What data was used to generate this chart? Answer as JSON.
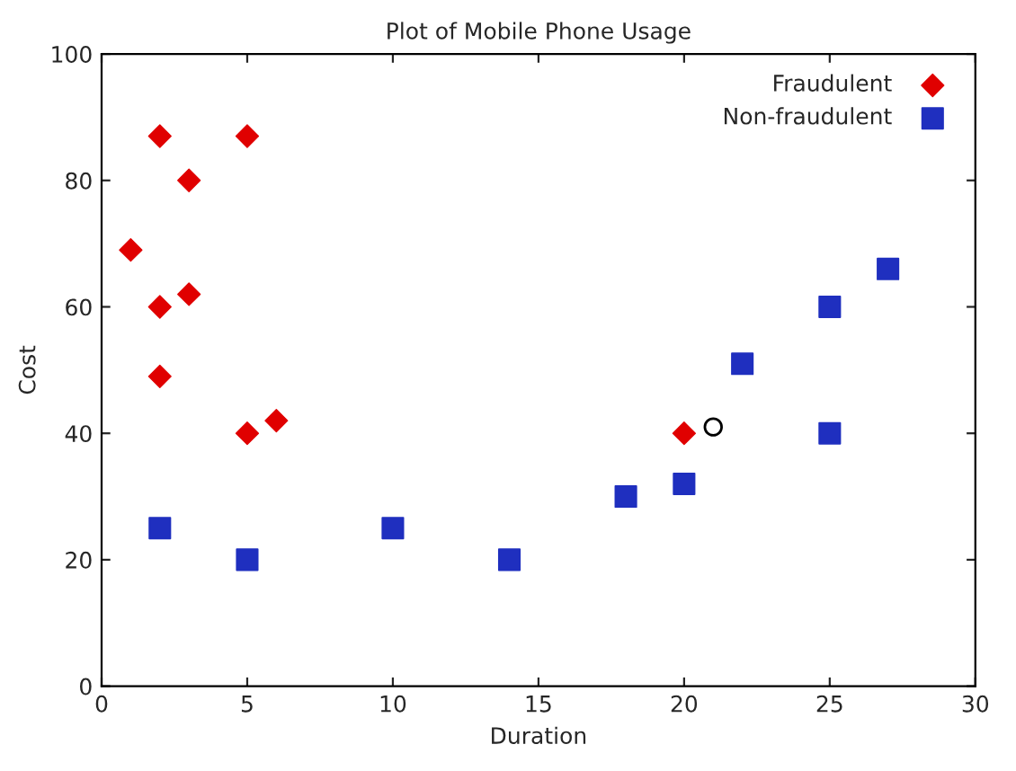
{
  "chart_data": {
    "type": "scatter",
    "title": "Plot of Mobile Phone Usage",
    "xlabel": "Duration",
    "ylabel": "Cost",
    "series": [
      {
        "name": "Fraudulent",
        "color": "#e00000",
        "marker": "diamond",
        "x": [
          1,
          2,
          3,
          5,
          2,
          3,
          2,
          5,
          6,
          20
        ],
        "values": [
          69,
          87,
          80,
          87,
          60,
          62,
          49,
          40,
          42,
          40
        ]
      },
      {
        "name": "Non-fraudulent",
        "color": "#1f2fbf",
        "marker": "square",
        "x": [
          2,
          5,
          10,
          14,
          18,
          20,
          22,
          25,
          25,
          27
        ],
        "values": [
          25,
          20,
          25,
          20,
          30,
          32,
          51,
          60,
          40,
          66
        ]
      },
      {
        "color": "#000000",
        "marker": "circle",
        "x": [
          21
        ],
        "values": [
          41
        ]
      }
    ],
    "xlim": [
      0,
      30
    ],
    "xticks": [
      0,
      5,
      10,
      15,
      20,
      25,
      30
    ],
    "ylim": [
      0,
      100
    ],
    "yticks": [
      0,
      20,
      40,
      60,
      80,
      100
    ],
    "grid": false,
    "legend": "top right"
  }
}
